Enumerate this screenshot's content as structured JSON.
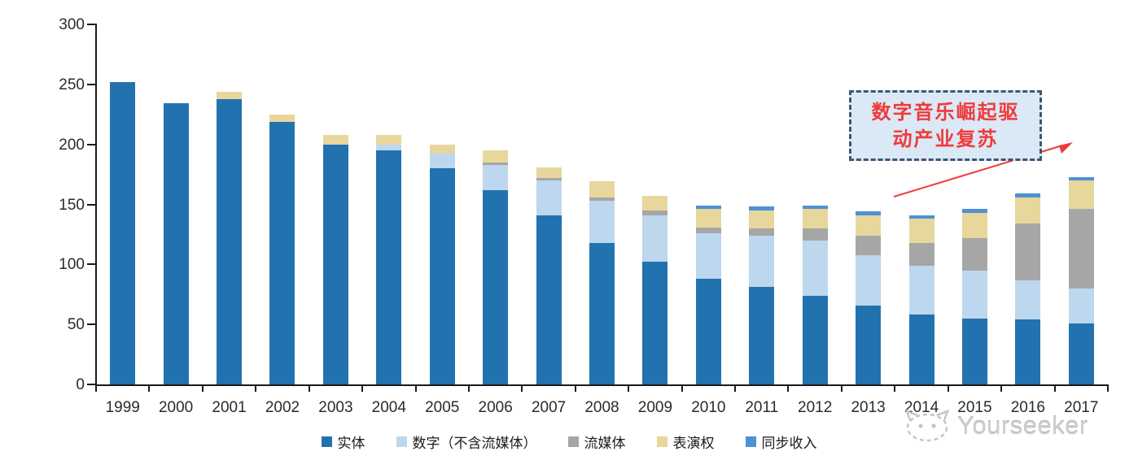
{
  "chart_data": {
    "type": "bar",
    "stacked": true,
    "title": "",
    "xlabel": "",
    "ylabel": "",
    "ylim": [
      0,
      300
    ],
    "yticks": [
      0,
      50,
      100,
      150,
      200,
      250,
      300
    ],
    "grid": false,
    "legend_position": "bottom",
    "categories": [
      "1999",
      "2000",
      "2001",
      "2002",
      "2003",
      "2004",
      "2005",
      "2006",
      "2007",
      "2008",
      "2009",
      "2010",
      "2011",
      "2012",
      "2013",
      "2014",
      "2015",
      "2016",
      "2017"
    ],
    "series": [
      {
        "name": "实体",
        "color": "#2272b0",
        "values": [
          252,
          234,
          238,
          219,
          200,
          195,
          180,
          162,
          141,
          118,
          102,
          88,
          81,
          74,
          66,
          58,
          55,
          54,
          51
        ]
      },
      {
        "name": "数字（不含流媒体）",
        "color": "#bdd7ee",
        "values": [
          0,
          0,
          0,
          0,
          0,
          5,
          12,
          21,
          29,
          35,
          39,
          38,
          43,
          46,
          42,
          41,
          40,
          33,
          29
        ]
      },
      {
        "name": "流媒体",
        "color": "#a6a6a6",
        "values": [
          0,
          0,
          0,
          0,
          0,
          0,
          0,
          2,
          2,
          3,
          4,
          5,
          6,
          10,
          16,
          19,
          27,
          47,
          66
        ]
      },
      {
        "name": "表演权",
        "color": "#e7d79c",
        "values": [
          0,
          0,
          6,
          6,
          8,
          8,
          8,
          10,
          9,
          13,
          12,
          15,
          15,
          16,
          17,
          20,
          21,
          22,
          24
        ]
      },
      {
        "name": "同步收入",
        "color": "#4e91d4",
        "values": [
          0,
          0,
          0,
          0,
          0,
          0,
          0,
          0,
          0,
          0,
          0,
          3,
          3,
          3,
          3,
          3,
          3,
          3,
          3
        ]
      }
    ]
  },
  "annotation": {
    "line1": "数字音乐崛起驱",
    "line2": "动产业复苏",
    "text_color": "#f03a3a",
    "box_fill": "#dbe8f6",
    "box_border": "#3e5771",
    "arrow_color": "#f03a3a"
  },
  "watermark": {
    "text": "Yourseeker"
  }
}
